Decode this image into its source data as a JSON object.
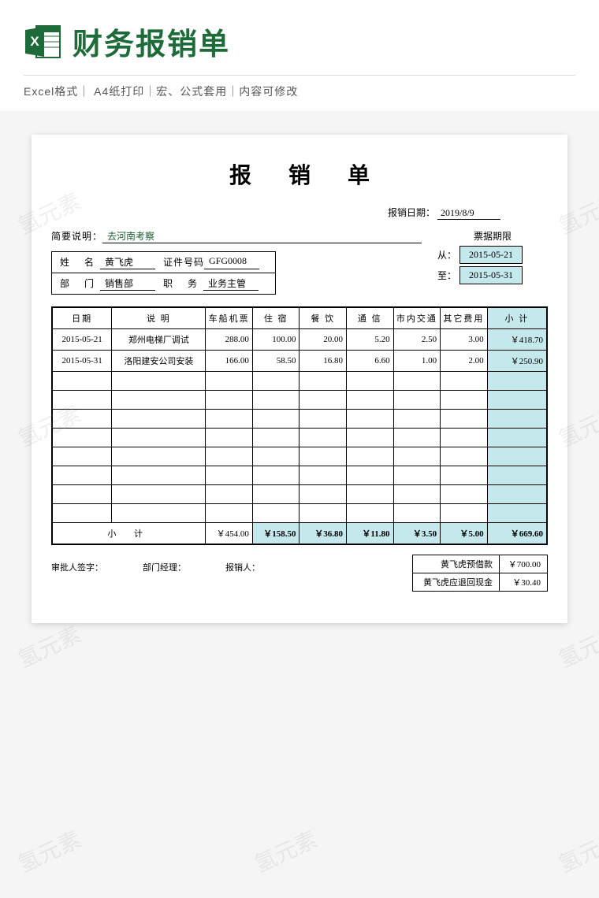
{
  "header": {
    "title": "财务报销单",
    "subtitle": "Excel格式｜ A4纸打印｜宏、公式套用｜内容可修改",
    "icon_letter": "X",
    "icon_colors": {
      "dark": "#1e6b3a",
      "light": "#2e8b57",
      "white": "#ffffff"
    }
  },
  "colors": {
    "brand_green": "#1e6b3a",
    "highlight_bg": "#c5e8ec",
    "page_bg": "#f5f5f5",
    "doc_bg": "#ffffff",
    "border": "#000000"
  },
  "watermark": "氢元素",
  "doc": {
    "title": "报 销 单",
    "report_date_label": "报销日期：",
    "report_date": "2019/8/9",
    "brief_label": "简要说明：",
    "brief_value": "去河南考察",
    "period_title": "票据期限",
    "period_from_label": "从：",
    "period_from": "2015-05-21",
    "period_to_label": "至：",
    "period_to": "2015-05-31",
    "info": {
      "name_label": "姓 名",
      "name_value": "黄飞虎",
      "id_label": "证件号码",
      "id_value": "GFG0008",
      "dept_label": "部 门",
      "dept_value": "销售部",
      "job_label": "职 务",
      "job_value": "业务主管"
    },
    "table": {
      "headers": [
        "日期",
        "说 明",
        "车船机票",
        "住 宿",
        "餐 饮",
        "通 信",
        "市内交通",
        "其它费用",
        "小 计"
      ],
      "rows": [
        {
          "date": "2015-05-21",
          "desc": "郑州电梯厂调试",
          "amounts": [
            "288.00",
            "100.00",
            "20.00",
            "5.20",
            "2.50",
            "3.00"
          ],
          "subtotal": "￥418.70"
        },
        {
          "date": "2015-05-31",
          "desc": "洛阳建安公司安装",
          "amounts": [
            "166.00",
            "58.50",
            "16.80",
            "6.60",
            "1.00",
            "2.00"
          ],
          "subtotal": "￥250.90"
        }
      ],
      "empty_row_count": 8,
      "subtotal_label": "小 计",
      "subtotals": [
        "￥454.00",
        "￥158.50",
        "￥36.80",
        "￥11.80",
        "￥3.50",
        "￥5.00"
      ],
      "grand_total": "￥669.60"
    },
    "footer": {
      "sig1": "审批人签字：",
      "sig2": "部门经理：",
      "sig3": "报销人：",
      "advance_label": "黄飞虎预借款",
      "advance_value": "￥700.00",
      "refund_label": "黄飞虎应退回现金",
      "refund_value": "￥30.40"
    }
  }
}
